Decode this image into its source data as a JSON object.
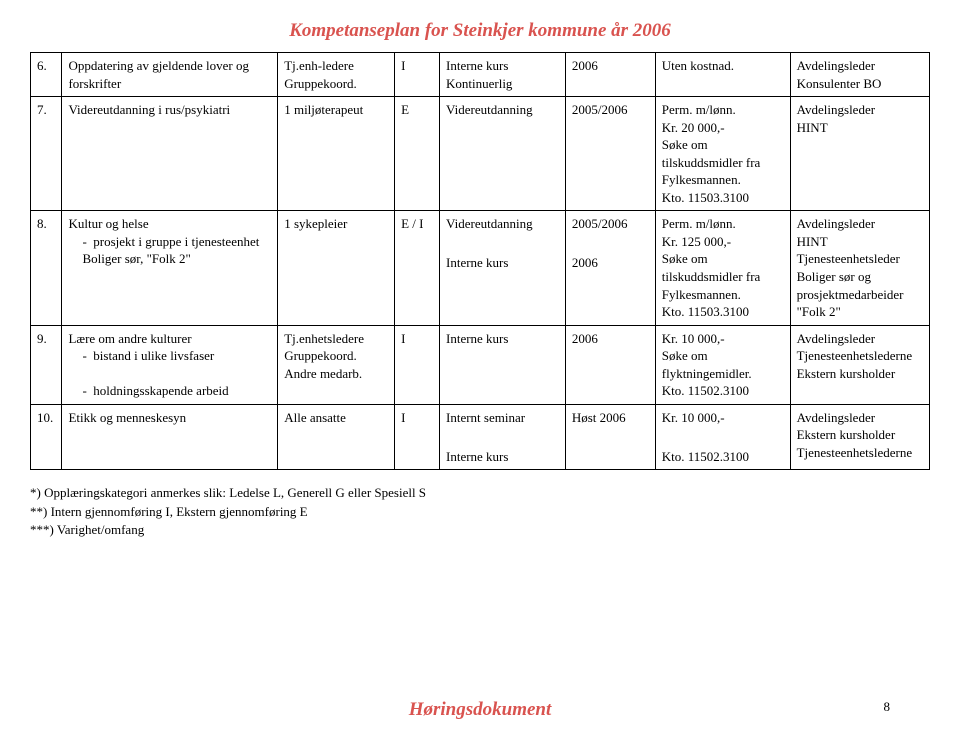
{
  "title": "Kompetanseplan for Steinkjer kommune år 2006",
  "footerTitle": "Høringsdokument",
  "pageNumber": "8",
  "rows": [
    {
      "num": "6.",
      "topic": "Oppdatering av gjeldende lover og forskrifter",
      "who": "Tj.enh-ledere\nGruppekoord.",
      "cat": "I",
      "type": "Interne kurs\nKontinuerlig",
      "when": "2006",
      "cost": "Uten kostnad.",
      "resp": "Avdelingsleder\nKonsulenter BO"
    },
    {
      "num": "7.",
      "topic": "Videreutdanning i rus/psykiatri",
      "who": "1 miljøterapeut",
      "cat": "E",
      "type": "Videreutdanning",
      "when": "2005/2006",
      "cost": "Perm. m/lønn.\nKr. 20 000,-\nSøke om tilskuddsmidler fra Fylkesmannen.\nKto. 11503.3100",
      "resp": "Avdelingsleder\nHINT"
    },
    {
      "num": "8.",
      "topic": "Kultur og helse\n-  prosjekt i gruppe i tjenesteenhet Boliger sør, \"Folk 2\"",
      "who": "1 sykepleier",
      "cat": "E / I",
      "type": "Videreutdanning\n\nInterne kurs",
      "when": "2005/2006\n\n2006",
      "cost": "Perm. m/lønn.\nKr. 125 000,-\nSøke om tilskuddsmidler fra Fylkesmannen.\nKto. 11503.3100",
      "resp": "Avdelingsleder\nHINT\nTjenesteenhetsleder Boliger sør og prosjektmedarbeider \"Folk 2\""
    },
    {
      "num": "9.",
      "topic": "Lære om andre kulturer\n-  bistand i ulike livsfaser\n-  holdningsskapende arbeid",
      "who": "Tj.enhetsledere\nGruppekoord.\nAndre medarb.",
      "cat": "I",
      "type": "Interne kurs",
      "when": "2006",
      "cost": "Kr. 10 000,-\nSøke om flyktningemidler.\nKto. 11502.3100",
      "resp": "Avdelingsleder\nTjenesteenhetslederne\nEkstern kursholder"
    },
    {
      "num": "10.",
      "topic": "Etikk og menneskesyn",
      "who": "Alle ansatte",
      "cat": "I",
      "type": "Internt seminar\n\nInterne kurs",
      "when": "Høst 2006",
      "cost": "Kr. 10 000,-\n\nKto. 11502.3100",
      "resp": "Avdelingsleder\nEkstern kursholder\nTjenesteenhetslederne"
    }
  ],
  "footnotes": [
    "*)   Opplæringskategori anmerkes slik: Ledelse L, Generell G eller Spesiell S",
    "**)  Intern gjennomføring I, Ekstern gjennomføring E",
    "***) Varighet/omfang"
  ]
}
